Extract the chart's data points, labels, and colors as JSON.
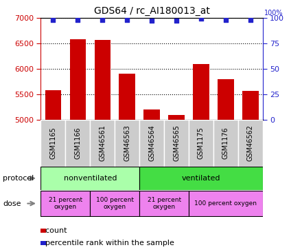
{
  "title": "GDS64 / rc_AI180013_at",
  "samples": [
    "GSM1165",
    "GSM1166",
    "GSM46561",
    "GSM46563",
    "GSM46564",
    "GSM46565",
    "GSM1175",
    "GSM1176",
    "GSM46562"
  ],
  "counts": [
    5575,
    6570,
    6560,
    5900,
    5195,
    5090,
    6095,
    5790,
    5565
  ],
  "percentile_ranks": [
    98,
    98,
    98,
    98,
    97,
    97,
    99,
    98,
    98
  ],
  "ylim_left": [
    5000,
    7000
  ],
  "ylim_right": [
    0,
    100
  ],
  "yticks_left": [
    5000,
    5500,
    6000,
    6500,
    7000
  ],
  "yticks_right": [
    0,
    25,
    50,
    75,
    100
  ],
  "bar_color": "#cc0000",
  "dot_color": "#2222cc",
  "protocol_groups": [
    {
      "label": "nonventilated",
      "start": 0,
      "end": 4,
      "color": "#aaffaa"
    },
    {
      "label": "ventilated",
      "start": 4,
      "end": 9,
      "color": "#44dd44"
    }
  ],
  "dose_groups": [
    {
      "label": "21 percent\noxygen",
      "start": 0,
      "end": 2,
      "color": "#ee82ee"
    },
    {
      "label": "100 percent\noxygen",
      "start": 2,
      "end": 4,
      "color": "#ee82ee"
    },
    {
      "label": "21 percent\noxygen",
      "start": 4,
      "end": 6,
      "color": "#ee82ee"
    },
    {
      "label": "100 percent oxygen",
      "start": 6,
      "end": 9,
      "color": "#ee82ee"
    }
  ],
  "tick_label_color_left": "#cc0000",
  "tick_label_color_right": "#2222cc",
  "grid_color": "#000000",
  "sample_box_color": "#cccccc",
  "bg_color": "#ffffff"
}
